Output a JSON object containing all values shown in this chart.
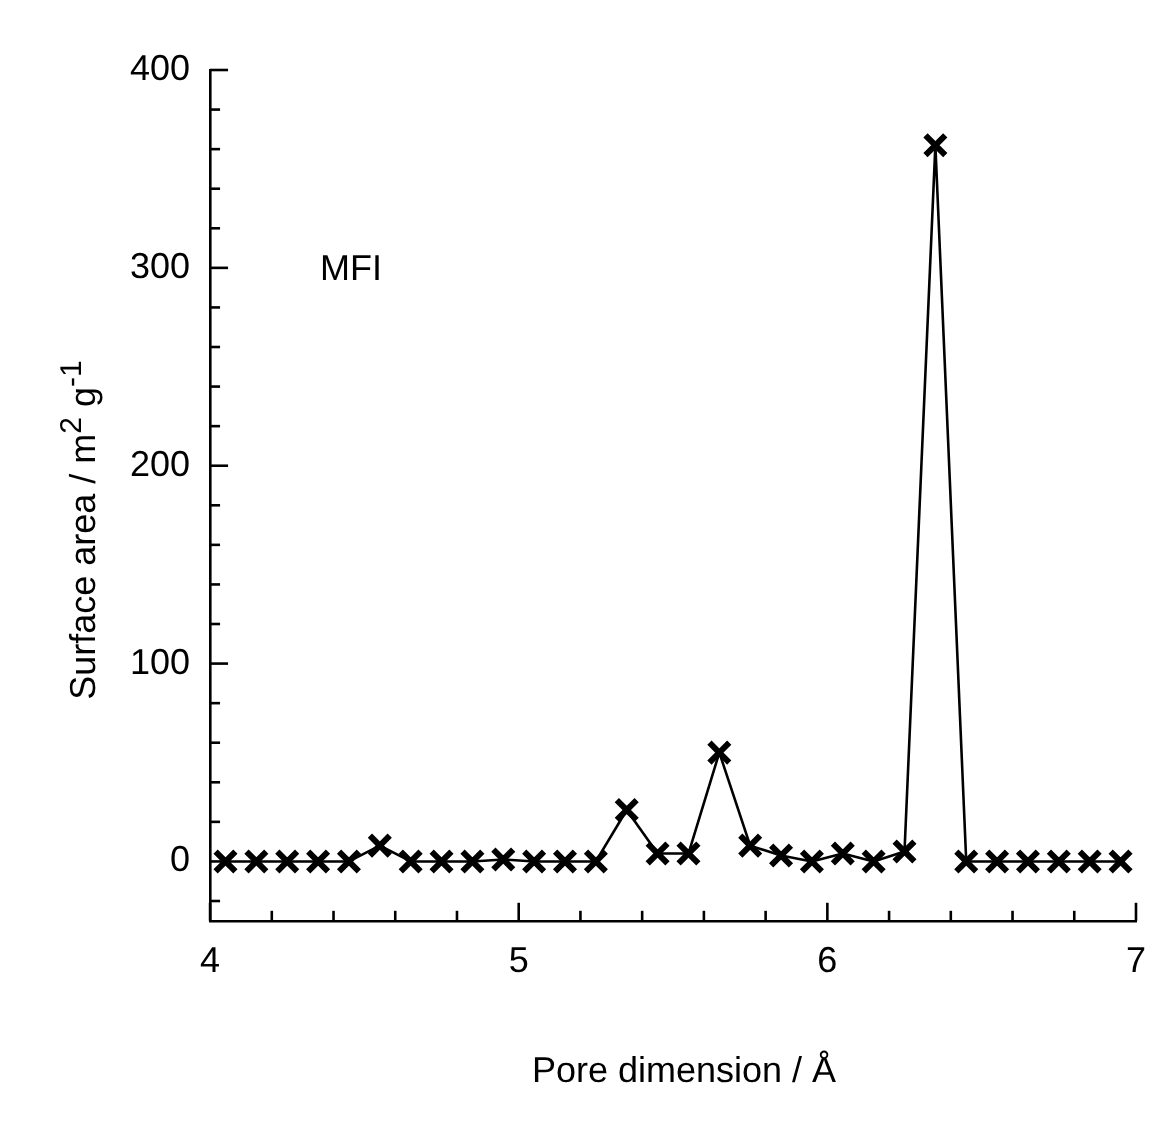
{
  "chart_data": {
    "type": "line",
    "xlabel": "Pore dimension / Å",
    "ylabel": "Surface area / m$^{2}$ g$^{-1}$",
    "annotations": [
      "MFI"
    ],
    "x": [
      4.05,
      4.15,
      4.25,
      4.35,
      4.45,
      4.55,
      4.65,
      4.75,
      4.85,
      4.95,
      5.05,
      5.15,
      5.25,
      5.35,
      5.45,
      5.55,
      5.65,
      5.75,
      5.85,
      5.95,
      6.05,
      6.15,
      6.25,
      6.35,
      6.45,
      6.55,
      6.65,
      6.75,
      6.85,
      6.95
    ],
    "series": [
      {
        "color": "#000000",
        "values": [
          0,
          0,
          0,
          0,
          0,
          8,
          0,
          0,
          0,
          1,
          0,
          0,
          0,
          26,
          4,
          4,
          55,
          8,
          3,
          0,
          4,
          0,
          5,
          362,
          0,
          0,
          0,
          0,
          0,
          0
        ]
      }
    ],
    "xlim": [
      4,
      7
    ],
    "ylim": [
      -30,
      400
    ],
    "xticks": [
      4,
      {
        "value": 4.2,
        "label": null
      },
      {
        "value": 4.4,
        "label": null
      },
      {
        "value": 4.6,
        "label": null
      },
      {
        "value": 4.8,
        "label": null
      },
      5,
      {
        "value": 5.2,
        "label": null
      },
      {
        "value": 5.4,
        "label": null
      },
      {
        "value": 5.6,
        "label": null
      },
      {
        "value": 5.8,
        "label": null
      },
      6,
      {
        "value": 6.2,
        "label": null
      },
      {
        "value": 6.4,
        "label": null
      },
      {
        "value": 6.6,
        "label": null
      },
      {
        "value": 6.8,
        "label": null
      },
      7
    ],
    "yticks": [
      {
        "value": -20,
        "label": null
      },
      0,
      {
        "value": 20,
        "label": null
      },
      {
        "value": 40,
        "label": null
      },
      {
        "value": 60,
        "label": null
      },
      {
        "value": 80,
        "label": null
      },
      100,
      {
        "value": 120,
        "label": null
      },
      {
        "value": 140,
        "label": null
      },
      {
        "value": 160,
        "label": null
      },
      {
        "value": 180,
        "label": null
      },
      200,
      {
        "value": 220,
        "label": null
      },
      {
        "value": 240,
        "label": null
      },
      {
        "value": 260,
        "label": null
      },
      {
        "value": 280,
        "label": null
      },
      300,
      {
        "value": 320,
        "label": null
      },
      {
        "value": 340,
        "label": null
      },
      {
        "value": 360,
        "label": null
      },
      {
        "value": 380,
        "label": null
      },
      400
    ],
    "grid": false,
    "legend": false,
    "marker": "cross",
    "line_style": "solid"
  }
}
